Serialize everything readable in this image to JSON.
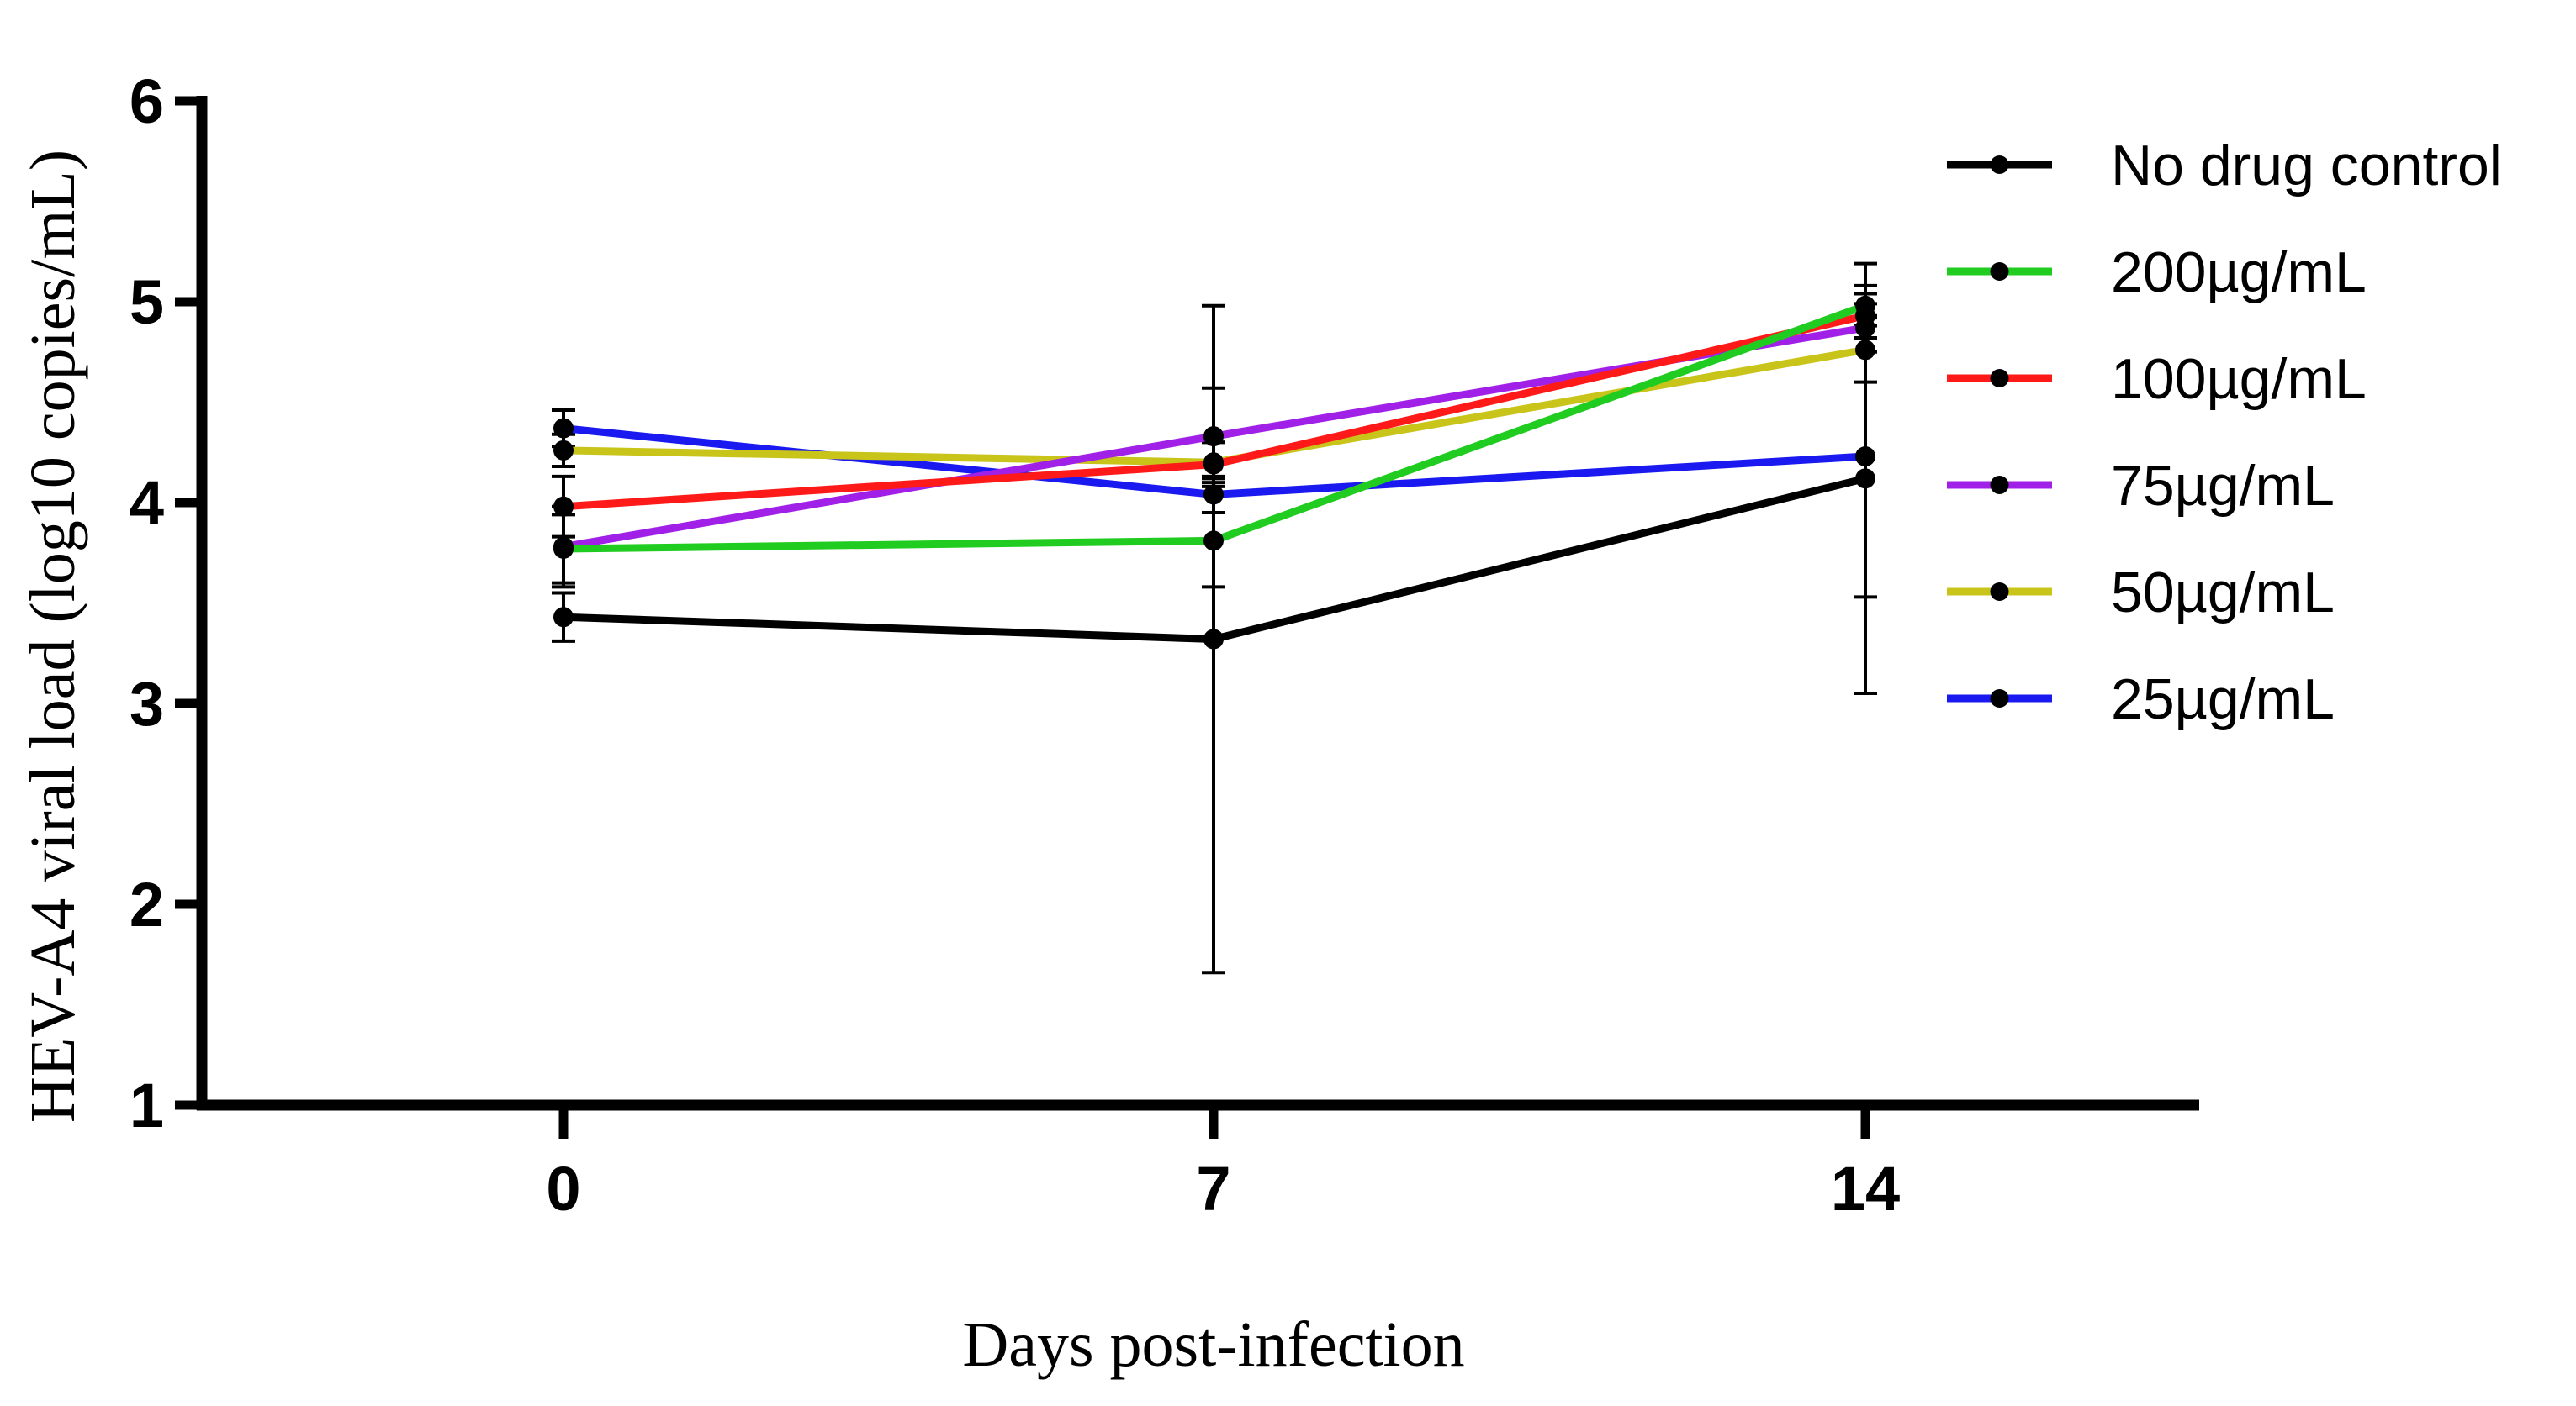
{
  "chart_data": {
    "type": "line",
    "title": "",
    "xlabel": "Days post-infection",
    "ylabel": "HEV-A4 viral load (log10 copies/mL)",
    "x": [
      0,
      7,
      14
    ],
    "x_tick_labels": [
      "0",
      "7",
      "14"
    ],
    "ylim": [
      1,
      6
    ],
    "y_ticks": [
      1,
      2,
      3,
      4,
      5,
      6
    ],
    "y_tick_labels": [
      "1",
      "2",
      "3",
      "4",
      "5",
      "6"
    ],
    "grid": false,
    "legend_position": "top-right",
    "series": [
      {
        "name": "No drug control",
        "color": "#000000",
        "values": [
          3.43,
          3.32,
          4.12
        ],
        "error_low": [
          3.31,
          1.66,
          3.05
        ],
        "error_high": [
          3.55,
          4.98,
          5.19
        ]
      },
      {
        "name": "200µg/mL",
        "color": "#1FCC1F",
        "values": [
          3.77,
          3.81,
          4.98
        ],
        "error_low": [
          3.6,
          3.58,
          4.88
        ],
        "error_high": [
          3.94,
          4.04,
          5.08
        ]
      },
      {
        "name": "100µg/mL",
        "color": "#FF1A1A",
        "values": [
          3.98,
          4.19,
          4.93
        ],
        "error_low": [
          3.83,
          4.08,
          4.82
        ],
        "error_high": [
          4.13,
          4.3,
          5.04
        ]
      },
      {
        "name": "75µg/mL",
        "color": "#A020E8",
        "values": [
          3.78,
          4.33,
          4.87
        ],
        "error_low": [
          3.58,
          4.12,
          4.75
        ],
        "error_high": [
          3.98,
          4.57,
          4.99
        ]
      },
      {
        "name": "50µg/mL",
        "color": "#C8C41A",
        "values": [
          4.26,
          4.2,
          4.76
        ],
        "error_low": [
          4.18,
          4.1,
          4.6
        ],
        "error_high": [
          4.34,
          4.3,
          4.92
        ]
      },
      {
        "name": "25µg/mL",
        "color": "#1A1AF0",
        "values": [
          4.37,
          4.04,
          4.23
        ],
        "error_low": [
          4.28,
          3.95,
          3.53
        ],
        "error_high": [
          4.46,
          4.13,
          4.93
        ]
      }
    ]
  }
}
